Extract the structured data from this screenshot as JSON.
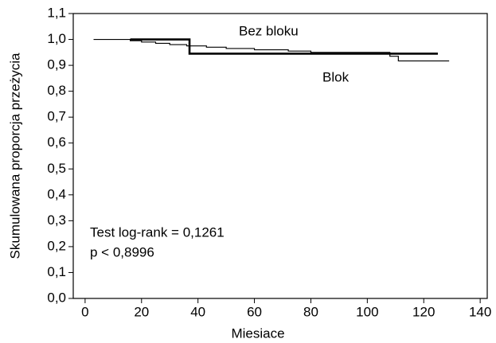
{
  "chart_data": {
    "type": "line",
    "step": true,
    "xlabel": "Miesiace",
    "ylabel": "Skumulowana proporcja przeżycia",
    "xlim": [
      -4.2,
      142.5
    ],
    "ylim": [
      0,
      1.1
    ],
    "xticks": [
      0,
      20,
      40,
      60,
      80,
      100,
      120,
      140
    ],
    "yticks": [
      {
        "value": 0,
        "label": "0,0"
      },
      {
        "value": 0.1,
        "label": "0,1"
      },
      {
        "value": 0.2,
        "label": "0,2"
      },
      {
        "value": 0.3,
        "label": "0,3"
      },
      {
        "value": 0.4,
        "label": "0,4"
      },
      {
        "value": 0.5,
        "label": "0,5"
      },
      {
        "value": 0.6,
        "label": "0,6"
      },
      {
        "value": 0.7,
        "label": "0,7"
      },
      {
        "value": 0.8,
        "label": "0,8"
      },
      {
        "value": 0.9,
        "label": "0,9"
      },
      {
        "value": 1.0,
        "label": "1,0"
      },
      {
        "value": 1.1,
        "label": "1,1"
      }
    ],
    "series": [
      {
        "name": "Bez bloku",
        "color": "#000000",
        "line_width": 1.2,
        "x": [
          3,
          16,
          16,
          20,
          20,
          25,
          25,
          30,
          30,
          36,
          36,
          43,
          43,
          50,
          50,
          60,
          60,
          72,
          72,
          80,
          80,
          108,
          108,
          111,
          111,
          129
        ],
        "values": [
          1.0,
          1.0,
          0.995,
          0.995,
          0.99,
          0.99,
          0.985,
          0.985,
          0.98,
          0.98,
          0.975,
          0.975,
          0.97,
          0.97,
          0.965,
          0.965,
          0.96,
          0.96,
          0.955,
          0.955,
          0.95,
          0.95,
          0.935,
          0.935,
          0.917,
          0.917
        ]
      },
      {
        "name": "Blok",
        "color": "#000000",
        "line_width": 2.6,
        "x": [
          16,
          37,
          37,
          125
        ],
        "values": [
          1.0,
          1.0,
          0.945,
          0.945
        ]
      }
    ],
    "annotations": [
      "Test log-rank = 0,1261",
      "p < 0,8996"
    ]
  }
}
